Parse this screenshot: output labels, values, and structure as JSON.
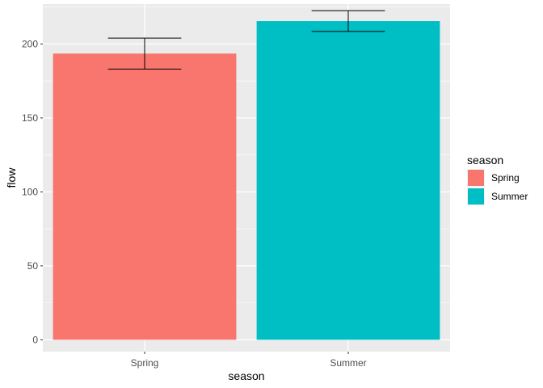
{
  "chart_data": {
    "type": "bar",
    "title": "",
    "xlabel": "season",
    "ylabel": "flow",
    "categories": [
      "Spring",
      "Summer"
    ],
    "values": [
      193.5,
      215.5
    ],
    "error_low": [
      183,
      208.5
    ],
    "error_high": [
      204,
      222.5
    ],
    "colors": [
      "#F8766D",
      "#00BFC4"
    ],
    "ylim": [
      -8,
      227
    ],
    "yticks": [
      0,
      50,
      100,
      150,
      200
    ],
    "panel_background": "#EBEBEB",
    "grid": true,
    "legend": {
      "title": "season",
      "placement": "right",
      "entries": [
        "Spring",
        "Summer"
      ]
    }
  }
}
